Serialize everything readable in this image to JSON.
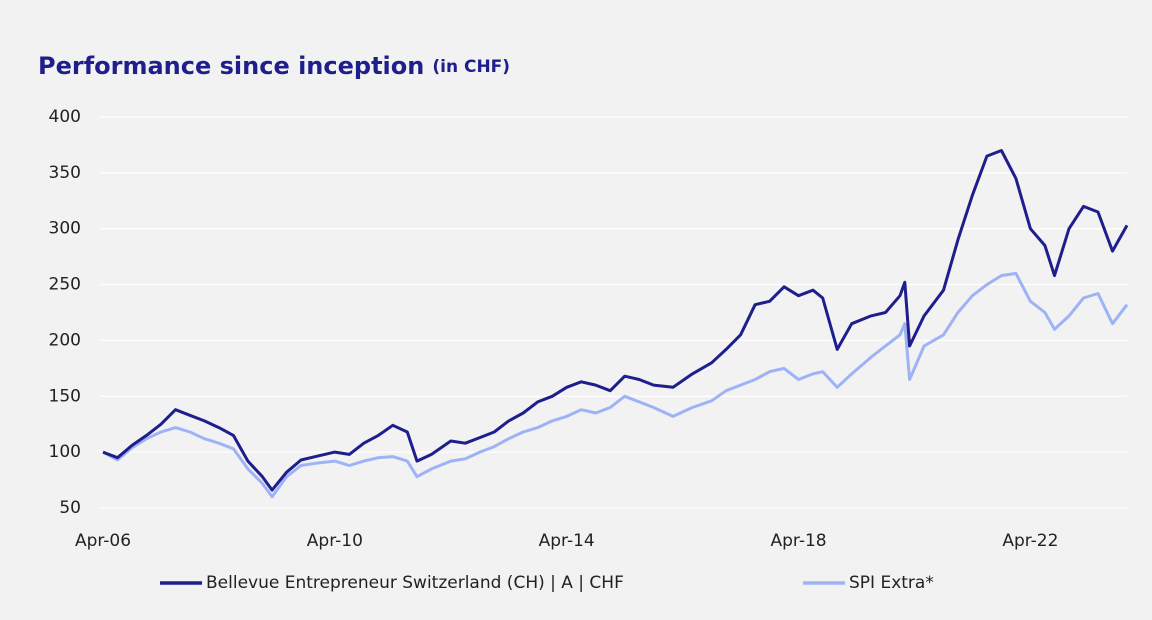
{
  "chart_data": {
    "type": "line",
    "title": "Performance since inception",
    "subtitle": "(in CHF)",
    "x": [
      "2006-04",
      "2006-07",
      "2006-10",
      "2007-01",
      "2007-04",
      "2007-07",
      "2007-10",
      "2008-01",
      "2008-04",
      "2008-07",
      "2008-10",
      "2009-01",
      "2009-03",
      "2009-06",
      "2009-09",
      "2009-12",
      "2010-04",
      "2010-07",
      "2010-10",
      "2011-01",
      "2011-04",
      "2011-07",
      "2011-09",
      "2011-12",
      "2012-04",
      "2012-07",
      "2012-10",
      "2013-01",
      "2013-04",
      "2013-07",
      "2013-10",
      "2014-01",
      "2014-04",
      "2014-07",
      "2014-10",
      "2015-01",
      "2015-04",
      "2015-07",
      "2015-10",
      "2016-02",
      "2016-06",
      "2016-10",
      "2017-01",
      "2017-04",
      "2017-07",
      "2017-10",
      "2018-01",
      "2018-04",
      "2018-07",
      "2018-09",
      "2018-12",
      "2019-03",
      "2019-07",
      "2019-10",
      "2020-01",
      "2020-02",
      "2020-03",
      "2020-06",
      "2020-10",
      "2021-01",
      "2021-04",
      "2021-07",
      "2021-10",
      "2022-01",
      "2022-04",
      "2022-07",
      "2022-09",
      "2022-12",
      "2023-03",
      "2023-06",
      "2023-09",
      "2023-12"
    ],
    "series": [
      {
        "name": "Bellevue Entrepreneur Switzerland (CH) | A | CHF",
        "color": "#1e1e8c",
        "values": [
          100,
          95,
          106,
          115,
          125,
          138,
          133,
          128,
          122,
          115,
          92,
          78,
          66,
          82,
          93,
          96,
          100,
          98,
          108,
          115,
          124,
          118,
          92,
          98,
          110,
          108,
          113,
          118,
          128,
          135,
          145,
          150,
          158,
          163,
          160,
          155,
          168,
          165,
          160,
          158,
          170,
          180,
          192,
          205,
          232,
          235,
          248,
          240,
          245,
          238,
          192,
          215,
          222,
          225,
          240,
          252,
          195,
          222,
          245,
          290,
          330,
          365,
          370,
          345,
          300,
          285,
          258,
          300,
          320,
          315,
          280,
          303
        ]
      },
      {
        "name": "SPI Extra*",
        "color": "#9db3f5",
        "values": [
          100,
          93,
          104,
          112,
          118,
          122,
          118,
          112,
          108,
          103,
          85,
          72,
          60,
          78,
          88,
          90,
          92,
          88,
          92,
          95,
          96,
          92,
          78,
          85,
          92,
          94,
          100,
          105,
          112,
          118,
          122,
          128,
          132,
          138,
          135,
          140,
          150,
          145,
          140,
          132,
          140,
          146,
          155,
          160,
          165,
          172,
          175,
          165,
          170,
          172,
          158,
          170,
          185,
          195,
          205,
          215,
          165,
          195,
          205,
          225,
          240,
          250,
          258,
          260,
          235,
          225,
          210,
          222,
          238,
          242,
          215,
          232
        ]
      }
    ],
    "xlim": [
      "2006-04",
      "2023-12"
    ],
    "xticks": [
      {
        "value": "2006-04",
        "label": "Apr-06"
      },
      {
        "value": "2010-04",
        "label": "Apr-10"
      },
      {
        "value": "2014-04",
        "label": "Apr-14"
      },
      {
        "value": "2018-04",
        "label": "Apr-18"
      },
      {
        "value": "2022-04",
        "label": "Apr-22"
      }
    ],
    "ylim": [
      50,
      400
    ],
    "yticks": [
      50,
      100,
      150,
      200,
      250,
      300,
      350,
      400
    ],
    "grid": true,
    "legend": "bottom"
  }
}
